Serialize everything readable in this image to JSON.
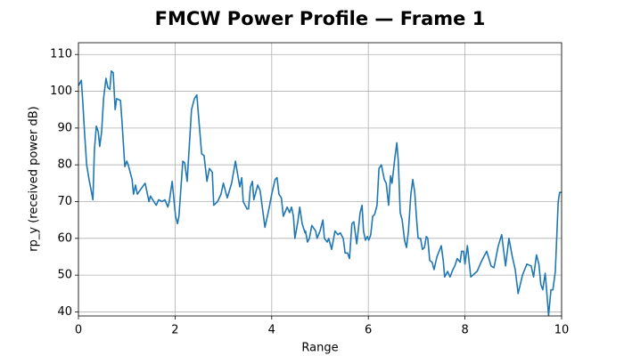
{
  "chart_data": {
    "type": "line",
    "title": "FMCW Power Profile — Frame 1",
    "x_label": "Range",
    "y_label": "rp_y (received power dB)",
    "xlim": [
      0,
      10
    ],
    "ylim": [
      38.9,
      113.2
    ],
    "xticks": [
      0,
      2,
      4,
      6,
      8,
      10
    ],
    "yticks": [
      40,
      50,
      60,
      70,
      80,
      90,
      100,
      110
    ],
    "grid": true,
    "series": [
      {
        "color": "#1f77b4",
        "x": [
          0,
          0.06,
          0.09,
          0.13,
          0.17,
          0.22,
          0.3,
          0.33,
          0.37,
          0.41,
          0.44,
          0.48,
          0.52,
          0.57,
          0.61,
          0.65,
          0.68,
          0.72,
          0.76,
          0.79,
          0.87,
          0.9,
          0.96,
          1.0,
          1.03,
          1.11,
          1.14,
          1.18,
          1.22,
          1.27,
          1.38,
          1.46,
          1.49,
          1.61,
          1.66,
          1.73,
          1.79,
          1.85,
          1.88,
          1.94,
          2.01,
          2.05,
          2.08,
          2.16,
          2.2,
          2.25,
          2.34,
          2.4,
          2.45,
          2.55,
          2.6,
          2.66,
          2.71,
          2.77,
          2.8,
          2.88,
          2.95,
          3.0,
          3.08,
          3.17,
          3.25,
          3.3,
          3.34,
          3.38,
          3.41,
          3.49,
          3.52,
          3.56,
          3.6,
          3.63,
          3.71,
          3.76,
          3.82,
          3.86,
          3.91,
          3.95,
          4.0,
          4.07,
          4.11,
          4.15,
          4.2,
          4.24,
          4.32,
          4.37,
          4.41,
          4.45,
          4.48,
          4.54,
          4.58,
          4.63,
          4.69,
          4.7,
          4.74,
          4.78,
          4.83,
          4.91,
          4.94,
          5.0,
          5.06,
          5.09,
          5.15,
          5.18,
          5.24,
          5.31,
          5.37,
          5.42,
          5.48,
          5.52,
          5.57,
          5.61,
          5.66,
          5.7,
          5.76,
          5.79,
          5.83,
          5.87,
          5.9,
          5.94,
          5.98,
          6.01,
          6.05,
          6.09,
          6.13,
          6.18,
          6.22,
          6.27,
          6.33,
          6.37,
          6.42,
          6.46,
          6.49,
          6.55,
          6.59,
          6.62,
          6.66,
          6.7,
          6.75,
          6.79,
          6.83,
          6.88,
          6.92,
          6.96,
          7.0,
          7.03,
          7.08,
          7.12,
          7.16,
          7.2,
          7.23,
          7.27,
          7.32,
          7.36,
          7.42,
          7.45,
          7.51,
          7.55,
          7.58,
          7.64,
          7.69,
          7.75,
          7.79,
          7.84,
          7.9,
          7.93,
          7.97,
          8.0,
          8.05,
          8.12,
          8.25,
          8.35,
          8.45,
          8.54,
          8.6,
          8.69,
          8.76,
          8.84,
          8.91,
          8.98,
          9.04,
          9.1,
          9.19,
          9.28,
          9.37,
          9.42,
          9.48,
          9.53,
          9.57,
          9.61,
          9.66,
          9.69,
          9.73,
          9.78,
          9.82,
          9.87,
          9.93,
          9.96,
          10
        ],
        "values": [
          101.5,
          103,
          97,
          88,
          80,
          76,
          70.5,
          84,
          90.5,
          89,
          85,
          89,
          98,
          103.5,
          101,
          100.5,
          105.5,
          105,
          95,
          98,
          97.5,
          92,
          79.5,
          81,
          80,
          76,
          72,
          74.5,
          72,
          73,
          75,
          70,
          71.5,
          69,
          70.5,
          70,
          70.5,
          68.5,
          70,
          75.5,
          66,
          64,
          66,
          81,
          80.5,
          75.5,
          95,
          98,
          99,
          83,
          82.5,
          75.5,
          79,
          78,
          69,
          70,
          72,
          75,
          71,
          75,
          81,
          77,
          74,
          76.5,
          70,
          68,
          68,
          74,
          75.5,
          70.5,
          74.5,
          73,
          67,
          63,
          66,
          68.5,
          72,
          76,
          76.5,
          72,
          71,
          66,
          68.5,
          67,
          68.5,
          66,
          60,
          64.5,
          68.5,
          64,
          61.5,
          62,
          59,
          60,
          63.5,
          62,
          60,
          62,
          65,
          60,
          59,
          60,
          57,
          62,
          61,
          61.5,
          60,
          56,
          56,
          54.5,
          64,
          64.5,
          58.5,
          62,
          67,
          69,
          62,
          59.5,
          60.5,
          59.5,
          61,
          66,
          66.5,
          69,
          79,
          80,
          76,
          75,
          69,
          77,
          75,
          82,
          86,
          81,
          67,
          65,
          59.5,
          57.5,
          62,
          72,
          76,
          72.5,
          65,
          60,
          60,
          57,
          57.5,
          60.5,
          60,
          54,
          53.5,
          51.5,
          55,
          56,
          58,
          54,
          49.5,
          51,
          49.5,
          51.5,
          52.5,
          54.5,
          53.5,
          56.5,
          56.5,
          53,
          58,
          49.5,
          51,
          54,
          56.5,
          52.5,
          52,
          58,
          61,
          52.5,
          60,
          55,
          51.5,
          45,
          50,
          53,
          52.5,
          49.5,
          55.5,
          53,
          47.5,
          46,
          50.5,
          46,
          39,
          46,
          46,
          51,
          70,
          72.5,
          72.5
        ]
      }
    ]
  }
}
